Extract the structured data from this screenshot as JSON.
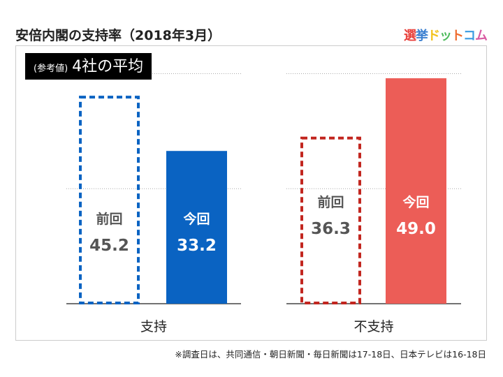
{
  "title": "安倍内閣の支持率（2018年3月）",
  "logo": [
    "選",
    "挙",
    "ド",
    "ッ",
    "ト",
    "コ",
    "ム"
  ],
  "logo_colors": [
    "#e8413c",
    "#3a7fd0",
    "#f3c21b",
    "#4dbb5c",
    "#ef6c2f",
    "#3a9be0",
    "#d95ba3"
  ],
  "badge": {
    "small": "(参考値)",
    "big": "4社の平均"
  },
  "note": "※調査日は、共同通信・朝日新聞・毎日新聞は17-18日、日本テレビは16-18日",
  "chart_data": {
    "type": "bar",
    "categories": [
      "支持",
      "不支持"
    ],
    "ylim": [
      0,
      50
    ],
    "gridlines": [
      25,
      50
    ],
    "series": [
      {
        "name": "前回",
        "values": [
          45.2,
          36.3
        ],
        "style": "dashed"
      },
      {
        "name": "今回",
        "values": [
          33.2,
          49.0
        ],
        "style": "solid"
      }
    ],
    "colors": {
      "支持": "#0a63c2",
      "不支持": "#ec5d57",
      "dashed_不支持": "#c2261f",
      "label_dashed": "#555555"
    }
  }
}
